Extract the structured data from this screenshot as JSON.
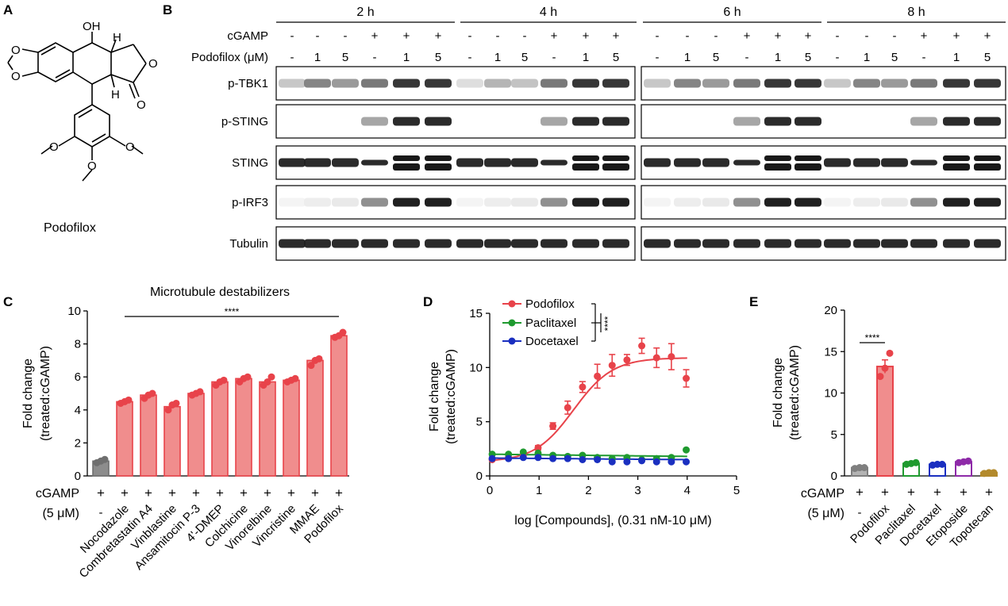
{
  "panel_letters": {
    "a": "A",
    "b": "B",
    "c": "C",
    "d": "D",
    "e": "E"
  },
  "panel_a": {
    "compound_name": "Podofilox",
    "atom_labels": {
      "oh": "OH",
      "h1": "H",
      "h2": "H",
      "o_carbonyl": "O",
      "ring_o": "O",
      "ome": "O"
    }
  },
  "panel_b": {
    "timepoints": [
      "2 h",
      "4 h",
      "6 h",
      "8 h"
    ],
    "row_labels": {
      "cgamp": "cGAMP",
      "podofilox": "Podofilox (μM)"
    },
    "cgamp_signs": [
      "-",
      "-",
      "-",
      "+",
      "+",
      "+"
    ],
    "podofilox_doses": [
      "-",
      "1",
      "5",
      "-",
      "1",
      "5"
    ],
    "blots": [
      {
        "name": "p-TBK1",
        "intensity": [
          0.25,
          0.55,
          0.45,
          0.6,
          0.9,
          0.9
        ]
      },
      {
        "name": "p-STING",
        "intensity": [
          0.0,
          0.0,
          0.0,
          0.4,
          0.95,
          0.95
        ]
      },
      {
        "name": "STING",
        "intensity": [
          0.95,
          0.95,
          0.95,
          0.95,
          0.98,
          0.98
        ]
      },
      {
        "name": "p-IRF3",
        "intensity": [
          0.05,
          0.08,
          0.1,
          0.5,
          1.0,
          1.0
        ]
      },
      {
        "name": "Tubulin",
        "intensity": [
          0.95,
          0.95,
          0.95,
          0.95,
          0.95,
          0.95
        ]
      }
    ]
  },
  "chart_data": [
    {
      "panel": "C",
      "type": "bar",
      "title": "Microtubule destabilizers",
      "significance": "****",
      "ylabel": "Fold change (treated:cGAMP)",
      "ylabel_lines": [
        "Fold change",
        "(treated:cGAMP)"
      ],
      "ylim": [
        0,
        10
      ],
      "yticks": [
        "0",
        "2",
        "4",
        "6",
        "8",
        "10"
      ],
      "categories": [
        "-",
        "Nocodazole",
        "Combretastatin A4",
        "Vinblastine",
        "Ansamitocin P-3",
        "4'-DMEP",
        "Colchicine",
        "Vinorelbine",
        "Vincristine",
        "MMAE",
        "Podofilox"
      ],
      "values": [
        0.9,
        4.5,
        4.9,
        4.2,
        5.0,
        5.7,
        5.9,
        5.7,
        5.8,
        7.0,
        8.5
      ],
      "points": [
        [
          0.8,
          0.9,
          1.0
        ],
        [
          4.4,
          4.5,
          4.6
        ],
        [
          4.7,
          4.9,
          5.0
        ],
        [
          4.0,
          4.3,
          4.4
        ],
        [
          4.9,
          5.0,
          5.1
        ],
        [
          5.5,
          5.7,
          5.8
        ],
        [
          5.7,
          5.9,
          6.0
        ],
        [
          5.5,
          5.7,
          6.0
        ],
        [
          5.7,
          5.8,
          5.9
        ],
        [
          6.7,
          7.0,
          7.1
        ],
        [
          8.4,
          8.5,
          8.7
        ]
      ],
      "cgamp_row": {
        "label": "cGAMP",
        "sub": "(5 μM)",
        "signs": [
          "+",
          "+",
          "+",
          "+",
          "+",
          "+",
          "+",
          "+",
          "+",
          "+",
          "+"
        ]
      },
      "colors": {
        "treated": "#f08d8d",
        "treated_edge": "#e8434a",
        "control": "#8c8c8c",
        "control_edge": "#6f6f6f"
      }
    },
    {
      "panel": "D",
      "type": "line",
      "xlabel": "log [Compounds], (0.31 nM-10 μM)",
      "ylabel": "Fold change (treated:cGAMP)",
      "ylabel_lines": [
        "Fold change",
        "(treated:cGAMP)"
      ],
      "xlim": [
        0,
        5
      ],
      "ylim": [
        0,
        15
      ],
      "xticks": [
        "0",
        "1",
        "2",
        "3",
        "4",
        "5"
      ],
      "yticks": [
        "0",
        "5",
        "10",
        "15"
      ],
      "significance": "****",
      "legend_position": "top-left",
      "series": [
        {
          "name": "Podofilox",
          "color": "#e8434a",
          "x": [
            0.05,
            0.38,
            0.68,
            0.98,
            1.28,
            1.58,
            1.88,
            2.18,
            2.48,
            2.78,
            3.08,
            3.38,
            3.68,
            3.98
          ],
          "y": [
            1.5,
            1.7,
            1.9,
            2.6,
            4.6,
            6.3,
            8.2,
            9.2,
            10.2,
            10.7,
            12.0,
            10.9,
            11.0,
            9.0
          ],
          "err": [
            0.1,
            0.1,
            0.1,
            0.2,
            0.3,
            0.6,
            0.5,
            1.1,
            1.0,
            0.5,
            0.7,
            0.9,
            1.2,
            0.8
          ],
          "fit": {
            "bottom": 1.3,
            "top": 10.9,
            "ec50": 1.7,
            "hill": 1.1
          }
        },
        {
          "name": "Paclitaxel",
          "color": "#1f9a2f",
          "x": [
            0.05,
            0.38,
            0.68,
            0.98,
            1.28,
            1.58,
            1.88,
            2.18,
            2.48,
            2.78,
            3.08,
            3.38,
            3.68,
            3.98
          ],
          "y": [
            2.0,
            2.0,
            2.2,
            2.1,
            1.9,
            1.8,
            1.9,
            1.7,
            1.6,
            1.7,
            1.5,
            1.6,
            1.7,
            2.4
          ],
          "fit": {
            "flat": 1.8
          }
        },
        {
          "name": "Docetaxel",
          "color": "#1a2fc0",
          "x": [
            0.05,
            0.38,
            0.68,
            0.98,
            1.28,
            1.58,
            1.88,
            2.18,
            2.48,
            2.78,
            3.08,
            3.38,
            3.68,
            3.98
          ],
          "y": [
            1.6,
            1.6,
            1.7,
            1.7,
            1.6,
            1.6,
            1.5,
            1.5,
            1.3,
            1.3,
            1.4,
            1.3,
            1.3,
            1.3
          ],
          "fit": {
            "flat": 1.5
          }
        }
      ]
    },
    {
      "panel": "E",
      "type": "bar",
      "significance": "****",
      "ylabel": "Fold change (treated:cGAMP)",
      "ylabel_lines": [
        "Fold change",
        "(treated:cGAMP)"
      ],
      "ylim": [
        0,
        20
      ],
      "yticks": [
        "0",
        "5",
        "10",
        "15",
        "20"
      ],
      "categories": [
        "-",
        "Podofilox",
        "Paclitaxel",
        "Docetaxel",
        "Etoposide",
        "Topotecan"
      ],
      "values": [
        1.0,
        13.2,
        1.5,
        1.4,
        1.7,
        0.4
      ],
      "errors": [
        0.05,
        0.8,
        0.05,
        0.05,
        0.1,
        0.05
      ],
      "points": [
        [
          0.9,
          1.0,
          1.0
        ],
        [
          12.0,
          13.0,
          14.8
        ],
        [
          1.4,
          1.5,
          1.6
        ],
        [
          1.3,
          1.4,
          1.4
        ],
        [
          1.6,
          1.7,
          1.8
        ],
        [
          0.3,
          0.4,
          0.4
        ]
      ],
      "cgamp_row": {
        "label": "cGAMP",
        "sub": "(5 μM)",
        "signs": [
          "+",
          "+",
          "+",
          "+",
          "+",
          "+"
        ]
      },
      "colors": [
        "#7f7f7f",
        "#e8434a",
        "#1f9a2f",
        "#1a2fc0",
        "#8e2aa8",
        "#b38a2c"
      ],
      "fills": [
        "#b3b3b3",
        "#f08d8d",
        "#ffffff",
        "#ffffff",
        "#ffffff",
        "#ffffff"
      ]
    }
  ]
}
